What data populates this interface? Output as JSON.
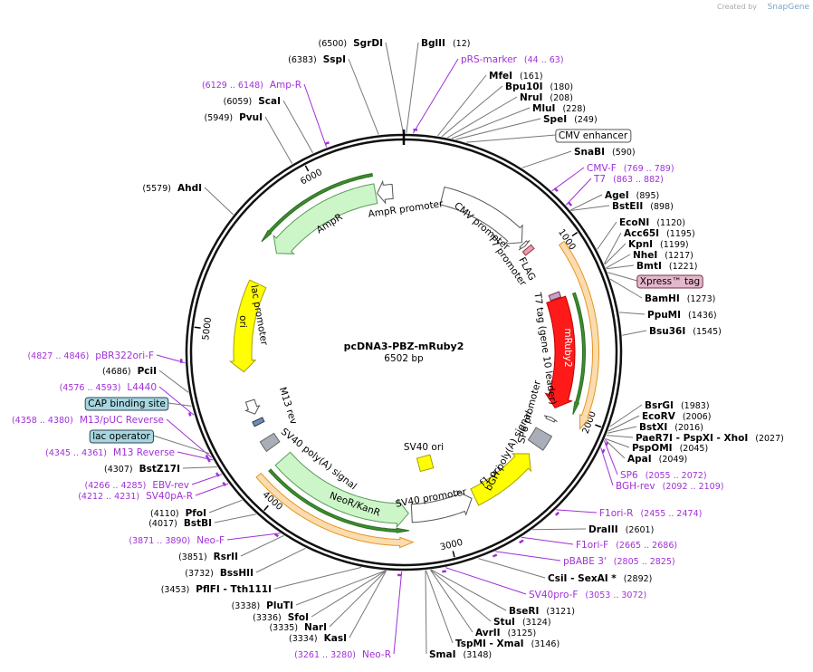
{
  "credit": {
    "prefix": "Created by",
    "brand": "SnapGene"
  },
  "plasmid": {
    "name": "pcDNA3-PBZ-mRuby2",
    "length": "6502 bp"
  },
  "ruler": [
    "1000",
    "2000",
    "3000",
    "4000",
    "5000",
    "6000"
  ],
  "sites": [
    {
      "name": "SgrDI",
      "pos": "(6500)"
    },
    {
      "name": "SspI",
      "pos": "(6383)"
    },
    {
      "name": "Amp-R",
      "pos": "(6129 .. 6148)"
    },
    {
      "name": "ScaI",
      "pos": "(6059)"
    },
    {
      "name": "PvuI",
      "pos": "(5949)"
    },
    {
      "name": "AhdI",
      "pos": "(5579)"
    },
    {
      "name": "pBR322ori-F",
      "pos": "(4827 .. 4846)"
    },
    {
      "name": "PciI",
      "pos": "(4686)"
    },
    {
      "name": "L4440",
      "pos": "(4576 .. 4593)"
    },
    {
      "name": "M13/pUC Reverse",
      "pos": "(4358 .. 4380)"
    },
    {
      "name": "M13 Reverse",
      "pos": "(4345 .. 4361)"
    },
    {
      "name": "BstZ17I",
      "pos": "(4307)"
    },
    {
      "name": "EBV-rev",
      "pos": "(4266 .. 4285)"
    },
    {
      "name": "SV40pA-R",
      "pos": "(4212 .. 4231)"
    },
    {
      "name": "PfoI",
      "pos": "(4110)"
    },
    {
      "name": "BstBI",
      "pos": "(4017)"
    },
    {
      "name": "Neo-F",
      "pos": "(3871 .. 3890)"
    },
    {
      "name": "RsrII",
      "pos": "(3851)"
    },
    {
      "name": "BssHII",
      "pos": "(3732)"
    },
    {
      "name": "PflFI - Tth111I",
      "pos": "(3453)"
    },
    {
      "name": "PluTI",
      "pos": "(3338)"
    },
    {
      "name": "SfoI",
      "pos": "(3336)"
    },
    {
      "name": "NarI",
      "pos": "(3335)"
    },
    {
      "name": "KasI",
      "pos": "(3334)"
    },
    {
      "name": "Neo-R",
      "pos": "(3261 .. 3280)"
    },
    {
      "name": "BglII",
      "pos": "(12)"
    },
    {
      "name": "pRS-marker",
      "pos": "(44 .. 63)"
    },
    {
      "name": "MfeI",
      "pos": "(161)"
    },
    {
      "name": "Bpu10I",
      "pos": "(180)"
    },
    {
      "name": "NruI",
      "pos": "(208)"
    },
    {
      "name": "MluI",
      "pos": "(228)"
    },
    {
      "name": "SpeI",
      "pos": "(249)"
    },
    {
      "name": "SnaBI",
      "pos": "(590)"
    },
    {
      "name": "CMV-F",
      "pos": "(769 .. 789)"
    },
    {
      "name": "T7",
      "pos": "(863 .. 882)"
    },
    {
      "name": "AgeI",
      "pos": "(895)"
    },
    {
      "name": "BstEII",
      "pos": "(898)"
    },
    {
      "name": "EcoNI",
      "pos": "(1120)"
    },
    {
      "name": "Acc65I",
      "pos": "(1195)"
    },
    {
      "name": "KpnI",
      "pos": "(1199)"
    },
    {
      "name": "NheI",
      "pos": "(1217)"
    },
    {
      "name": "BmtI",
      "pos": "(1221)"
    },
    {
      "name": "BamHI",
      "pos": "(1273)"
    },
    {
      "name": "PpuMI",
      "pos": "(1436)"
    },
    {
      "name": "Bsu36I",
      "pos": "(1545)"
    },
    {
      "name": "BsrGI",
      "pos": "(1983)"
    },
    {
      "name": "EcoRV",
      "pos": "(2006)"
    },
    {
      "name": "BstXI",
      "pos": "(2016)"
    },
    {
      "name": "PaeR7I - PspXI - XhoI",
      "pos": "(2027)"
    },
    {
      "name": "PspOMI",
      "pos": "(2045)"
    },
    {
      "name": "ApaI",
      "pos": "(2049)"
    },
    {
      "name": "SP6",
      "pos": "(2055 .. 2072)"
    },
    {
      "name": "BGH-rev",
      "pos": "(2092 .. 2109)"
    },
    {
      "name": "F1ori-R",
      "pos": "(2455 .. 2474)"
    },
    {
      "name": "DraIII",
      "pos": "(2601)"
    },
    {
      "name": "F1ori-F",
      "pos": "(2665 .. 2686)"
    },
    {
      "name": "pBABE 3'",
      "pos": "(2805 .. 2825)"
    },
    {
      "name": "CsiI - SexAI *",
      "pos": "(2892)"
    },
    {
      "name": "SV40pro-F",
      "pos": "(3053 .. 3072)"
    },
    {
      "name": "BseRI",
      "pos": "(3121)"
    },
    {
      "name": "StuI",
      "pos": "(3124)"
    },
    {
      "name": "AvrII",
      "pos": "(3125)"
    },
    {
      "name": "TspMI - XmaI",
      "pos": "(3146)"
    },
    {
      "name": "SmaI",
      "pos": "(3148)"
    }
  ],
  "boxed_features": [
    "CMV enhancer",
    "Xpress™ tag",
    "CAP binding site",
    "lac operator"
  ],
  "features": [
    "AmpR promoter",
    "AmpR",
    "ori",
    "lac promoter",
    "M13 rev",
    "SV40 poly(A) signal",
    "NeoR/KanR",
    "SV40 promoter",
    "SV40 ori",
    "f1 ori",
    "bGH poly(A) signal",
    "SP6 promoter",
    "mRuby2",
    "T7 tag (gene 10 leader)",
    "FLAG",
    "T7 promoter",
    "CMV promoter"
  ]
}
